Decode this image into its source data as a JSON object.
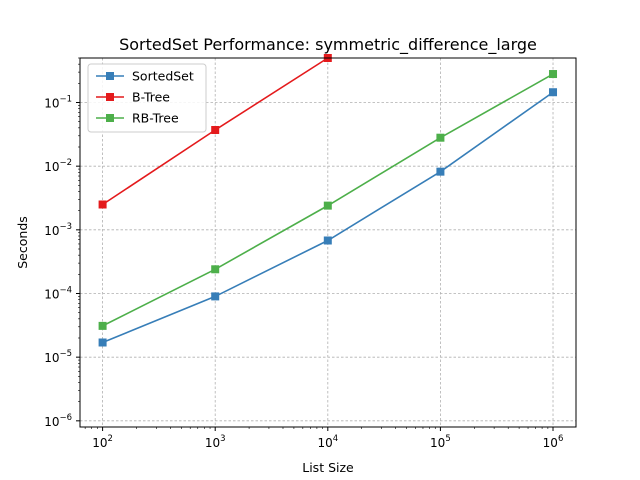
{
  "chart_data": {
    "type": "line",
    "title": "SortedSet Performance: symmetric_difference_large",
    "xlabel": "List Size",
    "ylabel": "Seconds",
    "xscale": "log",
    "yscale": "log",
    "xlim": [
      63,
      1600000
    ],
    "ylim": [
      8e-07,
      0.5
    ],
    "x_ticks": [
      {
        "base": "10",
        "exp": "2",
        "value": 100
      },
      {
        "base": "10",
        "exp": "3",
        "value": 1000
      },
      {
        "base": "10",
        "exp": "4",
        "value": 10000
      },
      {
        "base": "10",
        "exp": "5",
        "value": 100000
      },
      {
        "base": "10",
        "exp": "6",
        "value": 1000000
      }
    ],
    "y_ticks": [
      {
        "base": "10",
        "exp": "−6",
        "value": 1e-06
      },
      {
        "base": "10",
        "exp": "−5",
        "value": 1e-05
      },
      {
        "base": "10",
        "exp": "−4",
        "value": 0.0001
      },
      {
        "base": "10",
        "exp": "−3",
        "value": 0.001
      },
      {
        "base": "10",
        "exp": "−2",
        "value": 0.01
      },
      {
        "base": "10",
        "exp": "−1",
        "value": 0.1
      }
    ],
    "grid": true,
    "legend_position": "top-left",
    "series": [
      {
        "name": "SortedSet",
        "color": "#377eb8",
        "x": [
          100,
          1000,
          10000,
          100000,
          1000000
        ],
        "y": [
          1.7e-05,
          9e-05,
          0.00068,
          0.0082,
          0.145
        ]
      },
      {
        "name": "B-Tree",
        "color": "#e41a1c",
        "x": [
          100,
          1000,
          10000
        ],
        "y": [
          0.0025,
          0.037,
          0.5
        ]
      },
      {
        "name": "RB-Tree",
        "color": "#4daf4a",
        "x": [
          100,
          1000,
          10000,
          100000,
          1000000
        ],
        "y": [
          3.1e-05,
          0.00024,
          0.0024,
          0.028,
          0.28
        ]
      }
    ]
  }
}
